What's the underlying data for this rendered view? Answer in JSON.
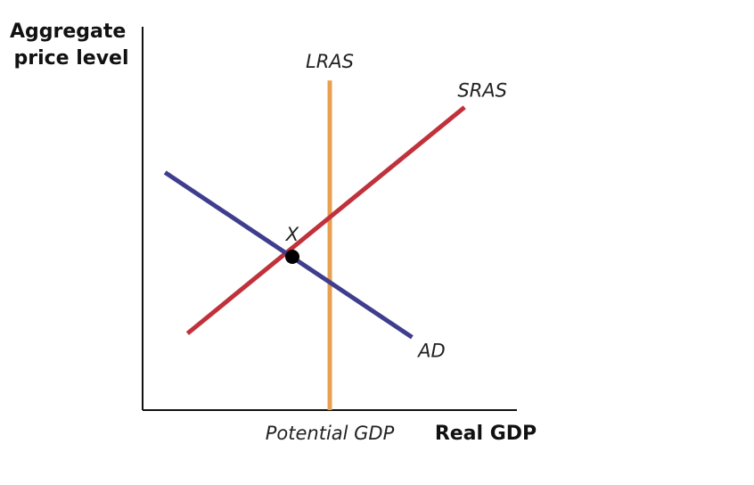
{
  "chart_data": {
    "type": "line",
    "title": "",
    "ylabel_lines": [
      "Aggregate",
      "price level"
    ],
    "xlabel": "Real GDP",
    "x_tick_label": "Potential GDP",
    "xlim": [
      0,
      10
    ],
    "ylim": [
      0,
      10
    ],
    "grid": false,
    "legend": "none",
    "series": [
      {
        "name": "LRAS",
        "color": "#e8a050",
        "points": [
          [
            5.0,
            0.0
          ],
          [
            5.0,
            8.6
          ]
        ]
      },
      {
        "name": "SRAS",
        "color": "#c0313b",
        "points": [
          [
            1.2,
            2.0
          ],
          [
            8.6,
            7.9
          ]
        ]
      },
      {
        "name": "AD",
        "color": "#3f3e8e",
        "points": [
          [
            0.6,
            6.2
          ],
          [
            7.2,
            1.9
          ]
        ]
      }
    ],
    "equilibrium": {
      "label": "X",
      "x": 4.0,
      "y": 4.0
    }
  }
}
